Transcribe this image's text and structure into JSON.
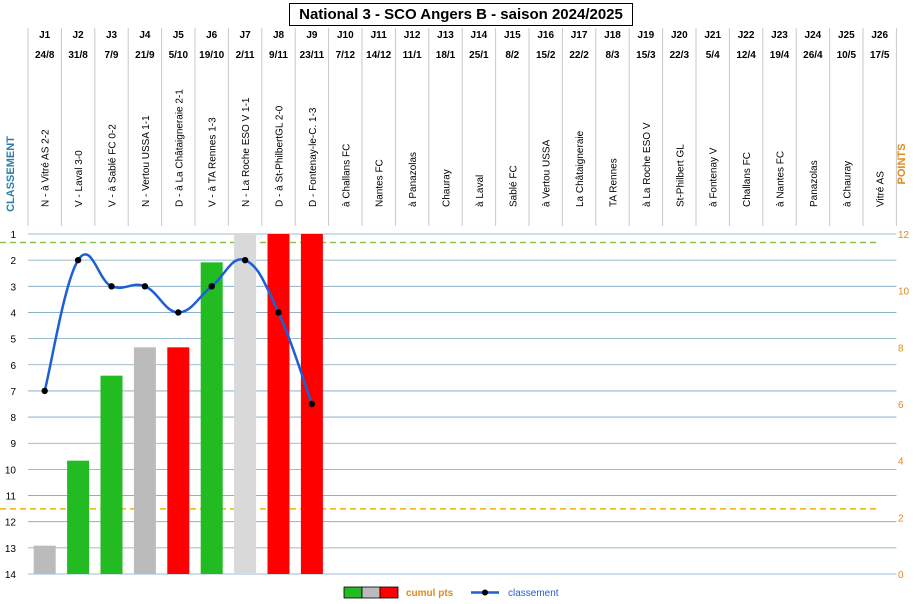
{
  "chart_data": {
    "type": "bar+line",
    "title": "National 3 - SCO Angers B - saison 2024/2025",
    "ylabel_left": "CLASSEMENT",
    "ylabel_right": "POINTS",
    "rank_ticks": [
      "1",
      "2",
      "3",
      "4",
      "5",
      "6",
      "7",
      "8",
      "9",
      "10",
      "11",
      "12",
      "13",
      "14"
    ],
    "rank_range": [
      1,
      14
    ],
    "points_ticks": [
      "0",
      "2",
      "4",
      "6",
      "8",
      "10",
      "12"
    ],
    "points_range": [
      0,
      12
    ],
    "matchdays": [
      {
        "j": "J1",
        "date": "24/8",
        "label": "N - à Vitré AS 2-2"
      },
      {
        "j": "J2",
        "date": "31/8",
        "label": "V - Laval 3-0"
      },
      {
        "j": "J3",
        "date": "7/9",
        "label": "V - à Sablé FC 0-2"
      },
      {
        "j": "J4",
        "date": "21/9",
        "label": "N - Vertou USSA 1-1"
      },
      {
        "j": "J5",
        "date": "5/10",
        "label": "D - à La Châtaigneraie 2-1"
      },
      {
        "j": "J6",
        "date": "19/10",
        "label": "V - à TA Rennes 1-3"
      },
      {
        "j": "J7",
        "date": "2/11",
        "label": "N - La Roche ESO V 1-1"
      },
      {
        "j": "J8",
        "date": "9/11",
        "label": "D - à St-PhilbertGL 2-0"
      },
      {
        "j": "J9",
        "date": "23/11",
        "label": "D - Fontenay-le-C. 1-3"
      },
      {
        "j": "J10",
        "date": "7/12",
        "label": "à Challans FC"
      },
      {
        "j": "J11",
        "date": "14/12",
        "label": "Nantes FC"
      },
      {
        "j": "J12",
        "date": "11/1",
        "label": "à Panazolas"
      },
      {
        "j": "J13",
        "date": "18/1",
        "label": "Chauray"
      },
      {
        "j": "J14",
        "date": "25/1",
        "label": "à Laval"
      },
      {
        "j": "J15",
        "date": "8/2",
        "label": "Sablé FC"
      },
      {
        "j": "J16",
        "date": "15/2",
        "label": "à Vertou USSA"
      },
      {
        "j": "J17",
        "date": "22/2",
        "label": "La Châtaigneraie"
      },
      {
        "j": "J18",
        "date": "8/3",
        "label": "TA Rennes"
      },
      {
        "j": "J19",
        "date": "15/3",
        "label": "à La Roche ESO V"
      },
      {
        "j": "J20",
        "date": "22/3",
        "label": "St-Philbert GL"
      },
      {
        "j": "J21",
        "date": "5/4",
        "label": "à Fontenay V"
      },
      {
        "j": "J22",
        "date": "12/4",
        "label": "Challans FC"
      },
      {
        "j": "J23",
        "date": "19/4",
        "label": "à Nantes FC"
      },
      {
        "j": "J24",
        "date": "26/4",
        "label": "Panazolas"
      },
      {
        "j": "J25",
        "date": "10/5",
        "label": "à Chauray"
      },
      {
        "j": "J26",
        "date": "17/5",
        "label": "Vitré AS"
      }
    ],
    "cumul_points": [
      1,
      4,
      7,
      8,
      8,
      11,
      12,
      12,
      12
    ],
    "bar_results": [
      "N",
      "V",
      "V",
      "N",
      "D",
      "V",
      "N",
      "D",
      "D"
    ],
    "classement": [
      7,
      2,
      3,
      3,
      4,
      3,
      2,
      4,
      7.5
    ],
    "result_colors": {
      "V": "#22bb22",
      "N": "#bbbbbb",
      "D": "#ff0000"
    },
    "bar_colors": [
      "#bbbbbb",
      "#22bb22",
      "#22bb22",
      "#bbbbbb",
      "#ff0000",
      "#22bb22",
      "#d9d9d9",
      "#ff0000",
      "#ff0000"
    ],
    "ref_lines_points": [
      11.7,
      2.3
    ],
    "ref_line_color": "#8bc34a",
    "ref_line2_color": "#f0b400",
    "line_color": "#1f5fd6",
    "left_axis_color": "#2c7fa8",
    "right_axis_color": "#e08a1e",
    "legend": {
      "cumul_label": "cumul pts",
      "classement_label": "classement"
    },
    "legend_position": "bottom-center",
    "grid": true
  }
}
